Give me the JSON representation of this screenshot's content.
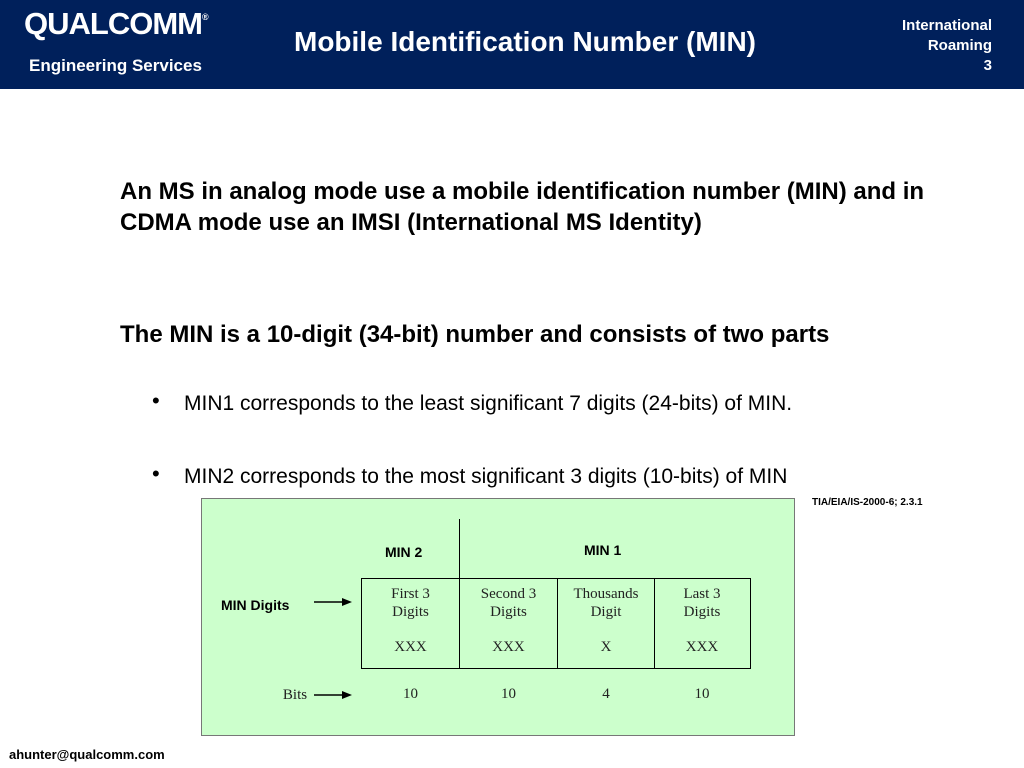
{
  "header": {
    "logo_text": "QUALCOMM",
    "subtitle": "Engineering Services",
    "title": "Mobile Identification Number (MIN)",
    "corner_line1": "International",
    "corner_line2": "Roaming",
    "page_number": "3"
  },
  "body": {
    "paragraph1": "An MS in analog mode use a mobile identification number (MIN) and in CDMA mode use an IMSI (International MS Identity)",
    "paragraph2": "The MIN is a 10-digit (34-bit) number and consists of two parts",
    "bullets": [
      "MIN1 corresponds to the least significant 7 digits (24-bits) of MIN.",
      "MIN2 corresponds to the most significant 3 digits (10-bits) of MIN"
    ],
    "reference": "TIA/EIA/IS-2000-6; 2.3.1"
  },
  "diagram": {
    "min2_label": "MIN 2",
    "min1_label": "MIN 1",
    "min_digits_label": "MIN Digits",
    "bits_label": "Bits",
    "columns": [
      {
        "line1": "First 3",
        "line2": "Digits",
        "value": "XXX",
        "bits": "10"
      },
      {
        "line1": "Second 3",
        "line2": "Digits",
        "value": "XXX",
        "bits": "10"
      },
      {
        "line1": "Thousands",
        "line2": "Digit",
        "value": "X",
        "bits": "4"
      },
      {
        "line1": "Last 3",
        "line2": "Digits",
        "value": "XXX",
        "bits": "10"
      }
    ]
  },
  "footer": {
    "email": "ahunter@qualcomm.com"
  }
}
